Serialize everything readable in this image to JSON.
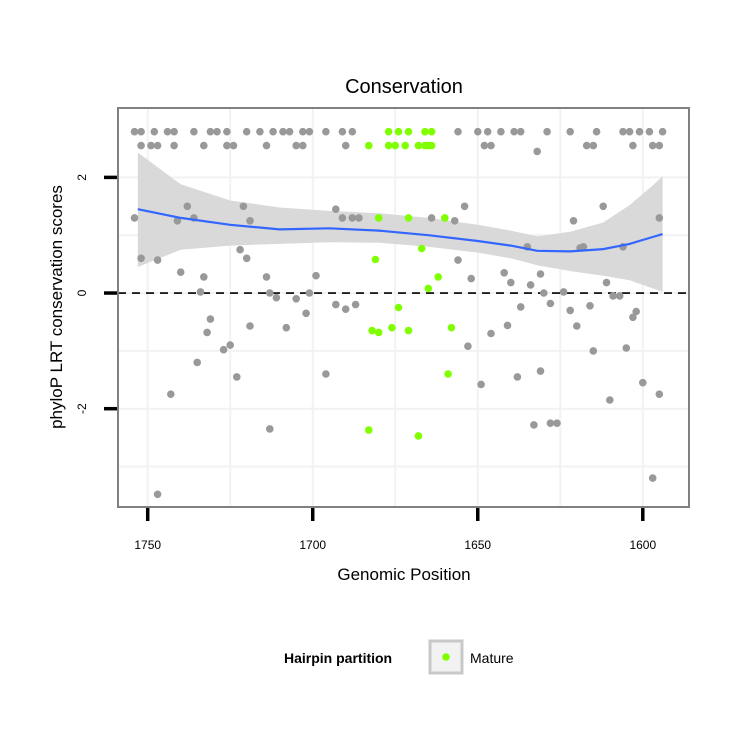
{
  "chart_data": {
    "type": "scatter",
    "title": "Conservation",
    "xlabel": "Genomic Position",
    "ylabel": "phyloP LRT conservation scores",
    "x_reversed": true,
    "xlim": [
      1759,
      1586
    ],
    "ylim": [
      -3.7,
      3.2
    ],
    "x_ticks": [
      1750,
      1700,
      1650,
      1600
    ],
    "y_ticks": [
      -2,
      0,
      2
    ],
    "reference_line": {
      "y": 0,
      "style": "dashed",
      "color": "#000000"
    },
    "grid": true,
    "legend": {
      "title": "Hairpin partition",
      "entries": [
        "Mature"
      ],
      "position": "bottom"
    },
    "colors": {
      "other": "#999999",
      "mature": "#7FFF00",
      "smooth_line": "#3366FF",
      "ribbon": "#D9D9D9",
      "panel_border": "#808080",
      "grid": "#F2F2F2"
    },
    "series": [
      {
        "group": "other",
        "color": "#999999",
        "points": [
          [
            1754,
            2.79
          ],
          [
            1752,
            2.79
          ],
          [
            1748,
            2.79
          ],
          [
            1744,
            2.79
          ],
          [
            1742,
            2.79
          ],
          [
            1736,
            2.79
          ],
          [
            1731,
            2.79
          ],
          [
            1729,
            2.79
          ],
          [
            1726,
            2.79
          ],
          [
            1720,
            2.79
          ],
          [
            1716,
            2.79
          ],
          [
            1712,
            2.79
          ],
          [
            1709,
            2.79
          ],
          [
            1707,
            2.79
          ],
          [
            1703,
            2.79
          ],
          [
            1701,
            2.79
          ],
          [
            1696,
            2.79
          ],
          [
            1691,
            2.79
          ],
          [
            1688,
            2.79
          ],
          [
            1656,
            2.79
          ],
          [
            1650,
            2.79
          ],
          [
            1647,
            2.79
          ],
          [
            1643,
            2.79
          ],
          [
            1639,
            2.79
          ],
          [
            1637,
            2.79
          ],
          [
            1629,
            2.79
          ],
          [
            1622,
            2.79
          ],
          [
            1614,
            2.79
          ],
          [
            1606,
            2.79
          ],
          [
            1604,
            2.79
          ],
          [
            1601,
            2.79
          ],
          [
            1598,
            2.79
          ],
          [
            1594,
            2.79
          ],
          [
            1752,
            2.55
          ],
          [
            1749,
            2.55
          ],
          [
            1747,
            2.55
          ],
          [
            1742,
            2.55
          ],
          [
            1733,
            2.55
          ],
          [
            1726,
            2.55
          ],
          [
            1724,
            2.55
          ],
          [
            1714,
            2.55
          ],
          [
            1705,
            2.55
          ],
          [
            1703,
            2.55
          ],
          [
            1690,
            2.55
          ],
          [
            1648,
            2.55
          ],
          [
            1646,
            2.55
          ],
          [
            1617,
            2.55
          ],
          [
            1615,
            2.55
          ],
          [
            1603,
            2.55
          ],
          [
            1597,
            2.55
          ],
          [
            1595,
            2.55
          ],
          [
            1632,
            2.45
          ],
          [
            1754,
            1.3
          ],
          [
            1741,
            1.25
          ],
          [
            1738,
            1.5
          ],
          [
            1736,
            1.3
          ],
          [
            1721,
            1.5
          ],
          [
            1719,
            1.25
          ],
          [
            1693,
            1.45
          ],
          [
            1691,
            1.3
          ],
          [
            1688,
            1.3
          ],
          [
            1686,
            1.3
          ],
          [
            1664,
            1.3
          ],
          [
            1657,
            1.25
          ],
          [
            1654,
            1.5
          ],
          [
            1621,
            1.25
          ],
          [
            1612,
            1.5
          ],
          [
            1606,
            0.8
          ],
          [
            1595,
            1.3
          ],
          [
            1752,
            0.6
          ],
          [
            1747,
            0.57
          ],
          [
            1740,
            0.36
          ],
          [
            1733,
            0.28
          ],
          [
            1722,
            0.75
          ],
          [
            1720,
            0.6
          ],
          [
            1714,
            0.28
          ],
          [
            1699,
            0.3
          ],
          [
            1656,
            0.57
          ],
          [
            1652,
            0.25
          ],
          [
            1642,
            0.35
          ],
          [
            1640,
            0.18
          ],
          [
            1635,
            0.8
          ],
          [
            1634,
            0.14
          ],
          [
            1631,
            0.33
          ],
          [
            1619,
            0.78
          ],
          [
            1618,
            0.8
          ],
          [
            1611,
            0.18
          ],
          [
            1734,
            0.02
          ],
          [
            1713,
            0.0
          ],
          [
            1711,
            -0.08
          ],
          [
            1705,
            -0.1
          ],
          [
            1701,
            0.0
          ],
          [
            1693,
            -0.2
          ],
          [
            1690,
            -0.28
          ],
          [
            1687,
            -0.2
          ],
          [
            1637,
            -0.24
          ],
          [
            1630,
            0.0
          ],
          [
            1624,
            0.02
          ],
          [
            1616,
            -0.22
          ],
          [
            1609,
            -0.05
          ],
          [
            1607,
            -0.05
          ],
          [
            1603,
            -0.42
          ],
          [
            1602,
            -0.32
          ],
          [
            1731,
            -0.45
          ],
          [
            1732,
            -0.68
          ],
          [
            1727,
            -0.98
          ],
          [
            1725,
            -0.9
          ],
          [
            1719,
            -0.57
          ],
          [
            1708,
            -0.6
          ],
          [
            1702,
            -0.35
          ],
          [
            1653,
            -0.92
          ],
          [
            1646,
            -0.7
          ],
          [
            1641,
            -0.56
          ],
          [
            1628,
            -0.18
          ],
          [
            1622,
            -0.3
          ],
          [
            1620,
            -0.57
          ],
          [
            1615,
            -1.0
          ],
          [
            1605,
            -0.95
          ],
          [
            1743,
            -1.75
          ],
          [
            1735,
            -1.2
          ],
          [
            1723,
            -1.45
          ],
          [
            1713,
            -2.35
          ],
          [
            1696,
            -1.4
          ],
          [
            1649,
            -1.58
          ],
          [
            1638,
            -1.45
          ],
          [
            1633,
            -2.28
          ],
          [
            1631,
            -1.35
          ],
          [
            1628,
            -2.25
          ],
          [
            1626,
            -2.25
          ],
          [
            1610,
            -1.85
          ],
          [
            1600,
            -1.55
          ],
          [
            1595,
            -1.75
          ],
          [
            1747,
            -3.48
          ],
          [
            1597,
            -3.2
          ]
        ]
      },
      {
        "group": "mature",
        "name": "Mature",
        "color": "#7FFF00",
        "points": [
          [
            1677,
            2.79
          ],
          [
            1674,
            2.79
          ],
          [
            1671,
            2.79
          ],
          [
            1666,
            2.79
          ],
          [
            1664,
            2.79
          ],
          [
            1683,
            2.55
          ],
          [
            1677,
            2.55
          ],
          [
            1675,
            2.55
          ],
          [
            1672,
            2.55
          ],
          [
            1668,
            2.55
          ],
          [
            1666,
            2.55
          ],
          [
            1665,
            2.55
          ],
          [
            1664,
            2.55
          ],
          [
            1680,
            1.3
          ],
          [
            1671,
            1.3
          ],
          [
            1660,
            1.3
          ],
          [
            1681,
            0.58
          ],
          [
            1667,
            0.77
          ],
          [
            1662,
            0.28
          ],
          [
            1665,
            0.08
          ],
          [
            1674,
            -0.25
          ],
          [
            1676,
            -0.6
          ],
          [
            1682,
            -0.65
          ],
          [
            1680,
            -0.68
          ],
          [
            1671,
            -0.65
          ],
          [
            1658,
            -0.6
          ],
          [
            1659,
            -1.4
          ],
          [
            1683,
            -2.37
          ],
          [
            1668,
            -2.47
          ]
        ]
      }
    ],
    "smooth": {
      "x": [
        1753,
        1740,
        1725,
        1710,
        1695,
        1680,
        1665,
        1650,
        1640,
        1632,
        1622,
        1612,
        1604,
        1597,
        1594
      ],
      "y": [
        1.45,
        1.3,
        1.18,
        1.1,
        1.12,
        1.08,
        1.0,
        0.9,
        0.82,
        0.73,
        0.72,
        0.76,
        0.85,
        0.97,
        1.02
      ],
      "lower": [
        0.45,
        0.75,
        0.82,
        0.85,
        0.88,
        0.87,
        0.8,
        0.7,
        0.6,
        0.48,
        0.38,
        0.3,
        0.22,
        0.08,
        0.02
      ],
      "upper": [
        2.43,
        1.88,
        1.6,
        1.48,
        1.42,
        1.38,
        1.3,
        1.18,
        1.08,
        0.98,
        1.06,
        1.22,
        1.52,
        1.86,
        2.02
      ]
    }
  }
}
